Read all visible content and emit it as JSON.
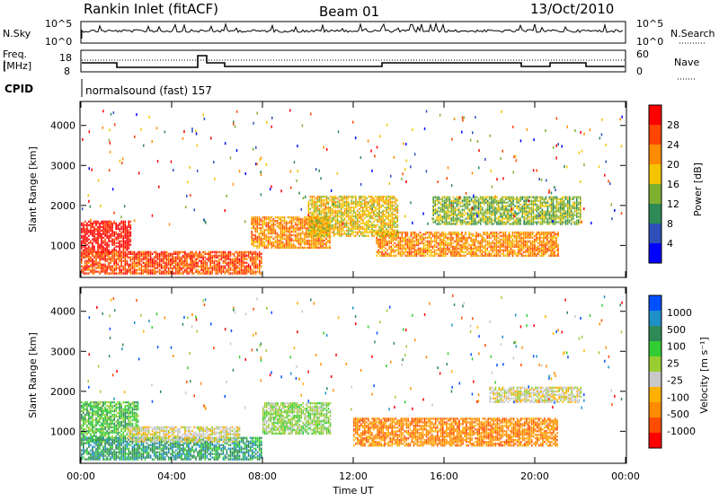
{
  "header": {
    "site": "Rankin Inlet (fitACF)",
    "beam": "Beam 01",
    "date": "13/Oct/2010"
  },
  "panel_labels": {
    "nsky": "N.Sky",
    "nsearch": "N.Search",
    "freq_line1": "Freq.",
    "freq_line2": "[MHz]",
    "nave": "Nave",
    "cpid": "CPID",
    "program": "normalsound (fast) 157",
    "nsky_ticks": [
      "10^5",
      "10^0"
    ],
    "nsearch_ticks": [
      "10^5",
      "10^0"
    ],
    "freq_ticks": [
      "18",
      "8"
    ],
    "nave_ticks": [
      "60",
      "0"
    ]
  },
  "colors": {
    "power": [
      "#0000ff",
      "#2e4fb8",
      "#2e8b57",
      "#7fb030",
      "#f5c400",
      "#ff8c00",
      "#ff4500",
      "#ff0000"
    ],
    "velocity": [
      "#ff0000",
      "#ff4d00",
      "#ff8c00",
      "#ffb000",
      "#c8c8c8",
      "#9acd32",
      "#32cd32",
      "#2e8b57",
      "#1e90c8",
      "#0050ff"
    ]
  },
  "chart_data": [
    {
      "type": "heatmap",
      "title": "",
      "ylabel": "Slant Range [km]",
      "xlabel": "",
      "x_ticks": [
        "00:00",
        "04:00",
        "08:00",
        "12:00",
        "16:00",
        "20:00",
        "00:00"
      ],
      "y_ticks": [
        "1000",
        "2000",
        "3000",
        "4000"
      ],
      "ylim": [
        200,
        4600
      ],
      "colorbar_label": "Power [dB]",
      "colorbar_ticks": [
        "4",
        "8",
        "12",
        "16",
        "20",
        "24",
        "28"
      ],
      "regions": [
        {
          "hours": [
            0,
            2.2
          ],
          "range": [
            750,
            1600
          ],
          "level": 7
        },
        {
          "hours": [
            0,
            8
          ],
          "range": [
            250,
            800
          ],
          "level": 6
        },
        {
          "hours": [
            7.5,
            11
          ],
          "range": [
            900,
            1700
          ],
          "level": 5
        },
        {
          "hours": [
            13,
            21
          ],
          "range": [
            700,
            1300
          ],
          "level": 5
        },
        {
          "hours": [
            15.5,
            22
          ],
          "range": [
            1500,
            2200
          ],
          "level": 3
        },
        {
          "hours": [
            10,
            14
          ],
          "range": [
            1200,
            2200
          ],
          "level": 4
        }
      ]
    },
    {
      "type": "heatmap",
      "title": "",
      "ylabel": "Slant Range [km]",
      "xlabel": "Time UT",
      "x_ticks": [
        "00:00",
        "04:00",
        "08:00",
        "12:00",
        "16:00",
        "20:00",
        "00:00"
      ],
      "y_ticks": [
        "1000",
        "2000",
        "3000",
        "4000"
      ],
      "ylim": [
        200,
        4600
      ],
      "colorbar_label": "Velocity [m s⁻¹]",
      "colorbar_ticks": [
        "1000",
        "500",
        "100",
        "25",
        "-25",
        "-100",
        "-500",
        "-1000"
      ],
      "regions": [
        {
          "hours": [
            0,
            2.5
          ],
          "range": [
            700,
            1700
          ],
          "level": 6
        },
        {
          "hours": [
            0,
            8
          ],
          "range": [
            250,
            800
          ],
          "level": 7
        },
        {
          "hours": [
            2,
            7
          ],
          "range": [
            700,
            1100
          ],
          "level": 4
        },
        {
          "hours": [
            8,
            11
          ],
          "range": [
            900,
            1700
          ],
          "level": 5
        },
        {
          "hours": [
            12,
            21
          ],
          "range": [
            600,
            1300
          ],
          "level": 2
        },
        {
          "hours": [
            18,
            22
          ],
          "range": [
            1700,
            2100
          ],
          "level": 4
        }
      ]
    }
  ]
}
